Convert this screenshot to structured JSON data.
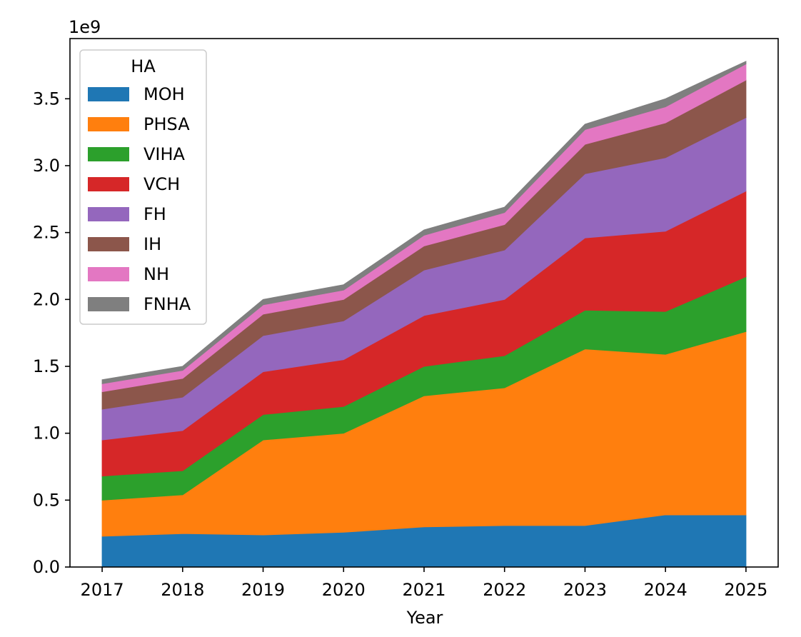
{
  "chart_data": {
    "type": "area",
    "stacked": true,
    "title": "",
    "xlabel": "Year",
    "ylabel": "",
    "y_offset_label": "1e9",
    "x": [
      2017,
      2018,
      2019,
      2020,
      2021,
      2022,
      2023,
      2024,
      2025
    ],
    "x_tick_labels": [
      "2017",
      "2018",
      "2019",
      "2020",
      "2021",
      "2022",
      "2023",
      "2024",
      "2025"
    ],
    "y_ticks": [
      0.0,
      0.5,
      1.0,
      1.5,
      2.0,
      2.5,
      3.0,
      3.5
    ],
    "y_tick_labels": [
      "0.0",
      "0.5",
      "1.0",
      "1.5",
      "2.0",
      "2.5",
      "3.0",
      "3.5"
    ],
    "ylim": [
      0,
      3.95
    ],
    "xlim": [
      2016.6,
      2025.4
    ],
    "grid": false,
    "legend": {
      "title": "HA",
      "placement": "top-left"
    },
    "series": [
      {
        "name": "MOH",
        "color": "#1f77b4",
        "values": [
          0.23,
          0.25,
          0.24,
          0.26,
          0.3,
          0.31,
          0.31,
          0.39,
          0.39
        ]
      },
      {
        "name": "PHSA",
        "color": "#ff7f0e",
        "values": [
          0.27,
          0.29,
          0.71,
          0.74,
          0.98,
          1.03,
          1.32,
          1.2,
          1.37
        ]
      },
      {
        "name": "VIHA",
        "color": "#2ca02c",
        "values": [
          0.18,
          0.18,
          0.19,
          0.2,
          0.22,
          0.24,
          0.29,
          0.32,
          0.41
        ]
      },
      {
        "name": "VCH",
        "color": "#d62728",
        "values": [
          0.27,
          0.3,
          0.32,
          0.35,
          0.38,
          0.42,
          0.54,
          0.6,
          0.64
        ]
      },
      {
        "name": "FH",
        "color": "#9467bd",
        "values": [
          0.23,
          0.25,
          0.27,
          0.29,
          0.34,
          0.37,
          0.48,
          0.55,
          0.55
        ]
      },
      {
        "name": "IH",
        "color": "#8c564b",
        "values": [
          0.13,
          0.14,
          0.16,
          0.16,
          0.18,
          0.19,
          0.22,
          0.26,
          0.28
        ]
      },
      {
        "name": "NH",
        "color": "#e377c2",
        "values": [
          0.06,
          0.06,
          0.07,
          0.07,
          0.08,
          0.09,
          0.11,
          0.12,
          0.12
        ]
      },
      {
        "name": "FNHA",
        "color": "#7f7f7f",
        "values": [
          0.03,
          0.03,
          0.04,
          0.04,
          0.04,
          0.04,
          0.04,
          0.06,
          0.02
        ]
      }
    ]
  }
}
